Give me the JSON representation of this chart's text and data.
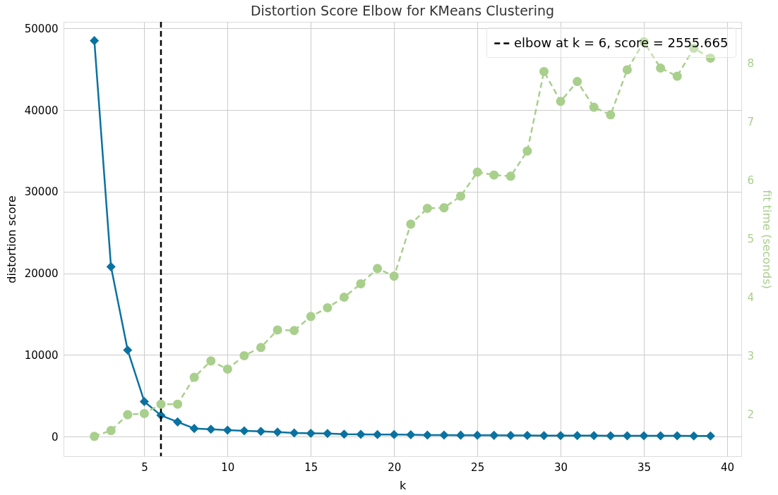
{
  "chart_data": {
    "type": "line",
    "title": "Distortion Score Elbow for KMeans Clustering",
    "xlabel": "k",
    "ylabel": "distortion score",
    "y2label": "fit time (seconds)",
    "x": [
      2,
      3,
      4,
      5,
      6,
      7,
      8,
      9,
      10,
      11,
      12,
      13,
      14,
      15,
      16,
      17,
      18,
      19,
      20,
      21,
      22,
      23,
      24,
      25,
      26,
      27,
      28,
      29,
      30,
      31,
      32,
      33,
      34,
      35,
      36,
      37,
      38,
      39
    ],
    "series": [
      {
        "color": "#0a72a0",
        "marker": "diamond",
        "line_style": "solid",
        "values": [
          48500,
          20800,
          10600,
          4300,
          2600,
          1800,
          1000,
          900,
          800,
          700,
          650,
          550,
          450,
          400,
          380,
          300,
          280,
          260,
          250,
          230,
          200,
          190,
          180,
          170,
          160,
          150,
          140,
          130,
          130,
          120,
          120,
          110,
          110,
          100,
          100,
          100,
          90,
          90
        ]
      },
      {
        "color": "#a9cf8c",
        "marker": "circle",
        "line_style": "dashed",
        "axis": "y2",
        "values": [
          1.62,
          1.72,
          1.99,
          2.01,
          2.17,
          2.17,
          2.63,
          2.91,
          2.77,
          3.0,
          3.14,
          3.44,
          3.43,
          3.67,
          3.82,
          4.0,
          4.23,
          4.49,
          4.36,
          5.25,
          5.52,
          5.53,
          5.73,
          6.14,
          6.09,
          6.07,
          6.5,
          7.86,
          7.35,
          7.69,
          7.25,
          7.12,
          7.89,
          8.37,
          7.92,
          7.78,
          8.26,
          8.09
        ]
      }
    ],
    "xlim": [
      0.15,
      40.85
    ],
    "xticks": [
      5,
      10,
      15,
      20,
      25,
      30,
      35,
      40
    ],
    "ylim": [
      -2400,
      50800
    ],
    "yticks": [
      0,
      10000,
      20000,
      30000,
      40000,
      50000
    ],
    "y2lim": [
      1.28,
      8.71
    ],
    "y2ticks": [
      2,
      3,
      4,
      5,
      6,
      7,
      8
    ],
    "ref_lines": [
      {
        "axis": "x",
        "value": 6,
        "label": "elbow at k = 6, score = 2555.665",
        "color": "#000000",
        "line_style": "dashed"
      }
    ],
    "grid": true,
    "legend": "top right"
  }
}
